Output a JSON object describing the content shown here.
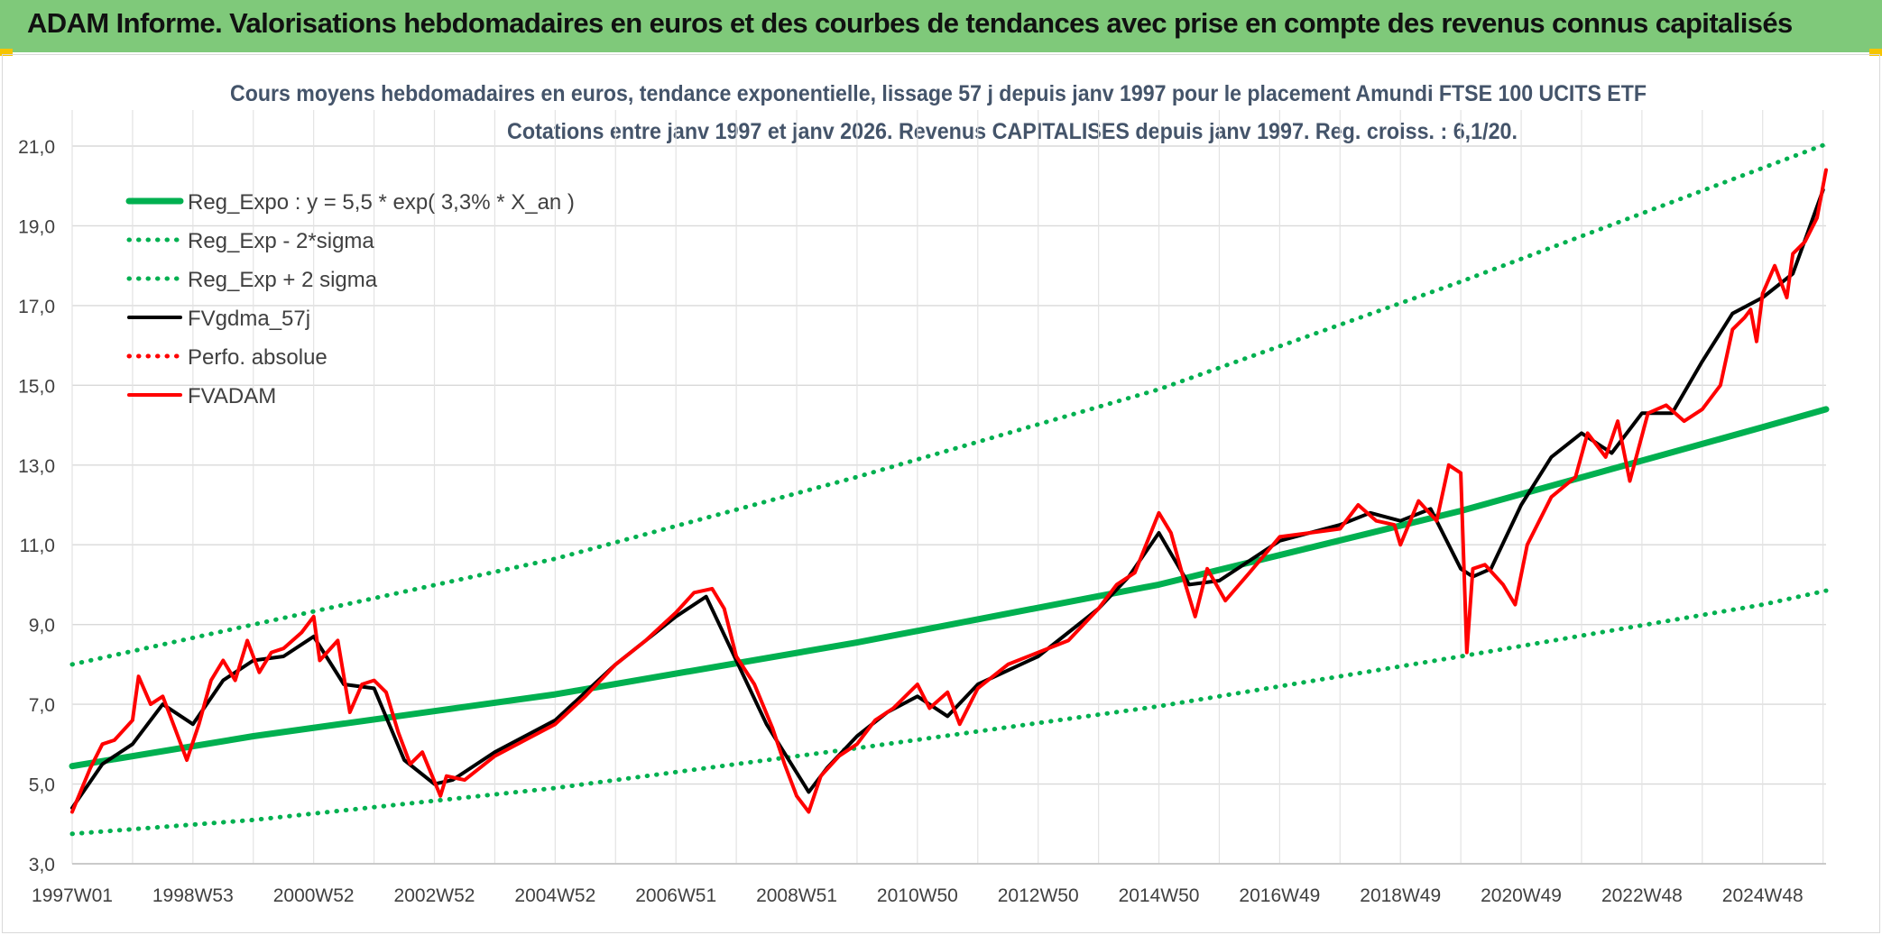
{
  "banner": {
    "title": "ADAM Informe. Valorisations hebdomadaires en euros et des courbes de tendances avec prise en compte des revenus connus capitalisés",
    "background": "#7fc97a",
    "corner_color": "#f5c400"
  },
  "chart_data": {
    "type": "line",
    "title_line1": "Cours moyens hebdomadaires en euros, tendance exponentielle, lissage 57 j depuis janv 1997 pour le placement Amundi FTSE 100 UCITS ETF",
    "title_line2": "Cotations entre janv 1997 et janv 2026. Revenus CAPITALISES depuis janv 1997. Reg. croiss. : 6,1/20.",
    "xlabel": "",
    "ylabel": "",
    "xlim": [
      1997.0,
      2026.05
    ],
    "ylim": [
      3.0,
      21.0
    ],
    "grid": true,
    "legend_position": "top-left",
    "y_ticks": [
      "3,0",
      "5,0",
      "7,0",
      "9,0",
      "11,0",
      "13,0",
      "15,0",
      "17,0",
      "19,0",
      "21,0"
    ],
    "y_tick_values": [
      3,
      5,
      7,
      9,
      11,
      13,
      15,
      17,
      19,
      21
    ],
    "x_ticks": [
      "1997W01",
      "1998W53",
      "2000W52",
      "2002W52",
      "2004W52",
      "2006W51",
      "2008W51",
      "2010W50",
      "2012W50",
      "2014W50",
      "2016W49",
      "2018W49",
      "2020W49",
      "2022W48",
      "2024W48"
    ],
    "x_tick_values": [
      1997.0,
      1999.0,
      2001.0,
      2003.0,
      2005.0,
      2007.0,
      2009.0,
      2011.0,
      2013.0,
      2015.0,
      2017.0,
      2019.0,
      2021.0,
      2023.0,
      2025.0
    ],
    "series": [
      {
        "name": "Reg_Expo : y = 5,5 * exp( 3,3% *  X_an )",
        "color": "#00b050",
        "style": "solid-thick",
        "x": [
          1997.0,
          2000.0,
          2005.0,
          2010.0,
          2015.0,
          2020.0,
          2025.0,
          2026.05
        ],
        "y": [
          5.45,
          6.2,
          7.25,
          8.55,
          10.0,
          11.85,
          13.95,
          14.4
        ]
      },
      {
        "name": "Reg_Exp - 2*sigma",
        "color": "#00b050",
        "style": "dotted",
        "x": [
          1997.0,
          2000.0,
          2005.0,
          2010.0,
          2015.0,
          2020.0,
          2025.0,
          2026.05
        ],
        "y": [
          3.75,
          4.1,
          4.9,
          5.9,
          6.95,
          8.2,
          9.5,
          9.85
        ]
      },
      {
        "name": "Reg_Exp + 2 sigma",
        "color": "#00b050",
        "style": "dotted",
        "x": [
          1997.0,
          2000.0,
          2005.0,
          2010.0,
          2015.0,
          2020.0,
          2025.0,
          2026.05
        ],
        "y": [
          8.0,
          9.0,
          10.65,
          12.7,
          14.9,
          17.6,
          20.45,
          21.05
        ]
      },
      {
        "name": "FVgdma_57j",
        "color": "#000000",
        "style": "solid",
        "x": [
          1997.0,
          1997.5,
          1998.0,
          1998.5,
          1999.0,
          1999.5,
          2000.0,
          2000.5,
          2001.0,
          2001.5,
          2002.0,
          2002.5,
          2003.0,
          2003.3,
          2004.0,
          2005.0,
          2006.0,
          2007.0,
          2007.5,
          2008.0,
          2008.5,
          2009.2,
          2009.5,
          2010.0,
          2010.5,
          2011.0,
          2011.5,
          2012.0,
          2013.0,
          2014.0,
          2014.5,
          2015.0,
          2015.5,
          2016.0,
          2017.0,
          2018.0,
          2018.5,
          2019.0,
          2019.5,
          2020.0,
          2020.2,
          2020.5,
          2021.0,
          2021.5,
          2022.0,
          2022.5,
          2023.0,
          2023.5,
          2024.0,
          2024.5,
          2025.0,
          2025.5,
          2026.0
        ],
        "y": [
          4.4,
          5.5,
          6.0,
          7.0,
          6.5,
          7.6,
          8.1,
          8.2,
          8.7,
          7.5,
          7.4,
          5.6,
          5.0,
          5.1,
          5.8,
          6.6,
          8.0,
          9.2,
          9.7,
          8.1,
          6.5,
          4.8,
          5.4,
          6.2,
          6.8,
          7.2,
          6.7,
          7.5,
          8.2,
          9.4,
          10.2,
          11.3,
          10.0,
          10.1,
          11.1,
          11.5,
          11.8,
          11.6,
          11.9,
          10.4,
          10.2,
          10.4,
          12.0,
          13.2,
          13.8,
          13.3,
          14.3,
          14.3,
          15.6,
          16.8,
          17.2,
          17.8,
          19.9
        ]
      },
      {
        "name": "Perfo. absolue",
        "color": "#ff0000",
        "style": "dotted",
        "x": [],
        "y": []
      },
      {
        "name": "FVADAM",
        "color": "#ff0000",
        "style": "solid-jagged",
        "x": [
          1997.0,
          1997.3,
          1997.5,
          1997.7,
          1998.0,
          1998.1,
          1998.3,
          1998.5,
          1998.7,
          1998.9,
          1999.1,
          1999.3,
          1999.5,
          1999.7,
          1999.9,
          2000.1,
          2000.3,
          2000.5,
          2000.8,
          2001.0,
          2001.1,
          2001.4,
          2001.6,
          2001.8,
          2002.0,
          2002.2,
          2002.4,
          2002.6,
          2002.8,
          2003.1,
          2003.2,
          2003.5,
          2004.0,
          2004.5,
          2005.0,
          2005.5,
          2006.0,
          2006.5,
          2007.0,
          2007.3,
          2007.6,
          2007.8,
          2008.0,
          2008.3,
          2008.6,
          2008.8,
          2009.0,
          2009.2,
          2009.4,
          2009.7,
          2010.0,
          2010.3,
          2010.6,
          2011.0,
          2011.2,
          2011.5,
          2011.7,
          2012.0,
          2012.5,
          2013.0,
          2013.5,
          2014.0,
          2014.3,
          2014.6,
          2015.0,
          2015.2,
          2015.4,
          2015.6,
          2015.8,
          2016.1,
          2016.5,
          2017.0,
          2017.5,
          2018.0,
          2018.3,
          2018.6,
          2018.9,
          2019.0,
          2019.3,
          2019.6,
          2019.8,
          2020.0,
          2020.1,
          2020.2,
          2020.4,
          2020.7,
          2020.9,
          2021.1,
          2021.5,
          2021.9,
          2022.1,
          2022.4,
          2022.6,
          2022.8,
          2023.1,
          2023.4,
          2023.7,
          2024.0,
          2024.3,
          2024.5,
          2024.7,
          2024.8,
          2024.9,
          2025.0,
          2025.2,
          2025.4,
          2025.5,
          2025.7,
          2025.9,
          2026.05
        ],
        "y": [
          4.3,
          5.4,
          6.0,
          6.1,
          6.6,
          7.7,
          7.0,
          7.2,
          6.4,
          5.6,
          6.5,
          7.6,
          8.1,
          7.6,
          8.6,
          7.8,
          8.3,
          8.4,
          8.8,
          9.2,
          8.1,
          8.6,
          6.8,
          7.5,
          7.6,
          7.3,
          6.3,
          5.5,
          5.8,
          4.7,
          5.2,
          5.1,
          5.7,
          6.1,
          6.5,
          7.2,
          8.0,
          8.6,
          9.3,
          9.8,
          9.9,
          9.4,
          8.2,
          7.5,
          6.4,
          5.5,
          4.7,
          4.3,
          5.2,
          5.7,
          6.0,
          6.6,
          6.9,
          7.5,
          6.9,
          7.3,
          6.5,
          7.4,
          8.0,
          8.3,
          8.6,
          9.4,
          10.0,
          10.3,
          11.8,
          11.3,
          10.2,
          9.2,
          10.4,
          9.6,
          10.3,
          11.2,
          11.3,
          11.4,
          12.0,
          11.6,
          11.5,
          11.0,
          12.1,
          11.6,
          13.0,
          12.8,
          8.3,
          10.4,
          10.5,
          10.0,
          9.5,
          11.0,
          12.2,
          12.7,
          13.8,
          13.2,
          14.1,
          12.6,
          14.3,
          14.5,
          14.1,
          14.4,
          15.0,
          16.4,
          16.7,
          16.9,
          16.1,
          17.3,
          18.0,
          17.2,
          18.3,
          18.6,
          19.2,
          20.4
        ]
      }
    ]
  }
}
